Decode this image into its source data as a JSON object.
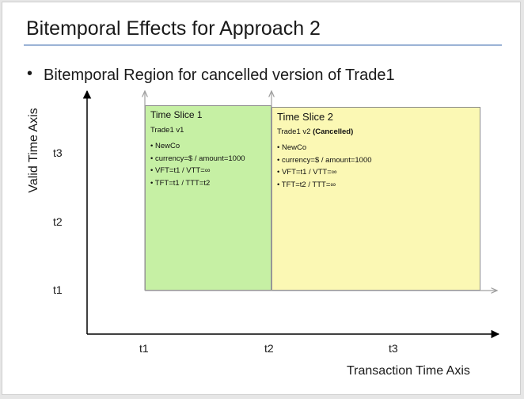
{
  "title": "Bitemporal Effects for Approach 2",
  "bullet": {
    "marker": "•",
    "text": "Bitemporal Region for cancelled version of Trade1"
  },
  "axes": {
    "y_label": "Valid Time Axis",
    "x_label": "Transaction Time Axis",
    "y_ticks": [
      "t3",
      "t2",
      "t1"
    ],
    "x_ticks": [
      "t1",
      "t2",
      "t3"
    ]
  },
  "slices": [
    {
      "title": "Time Slice 1",
      "subtitle": "Trade1 v1",
      "subtitle_suffix": "",
      "items": [
        "• NewCo",
        "• currency=$ / amount=1000",
        "• VFT=t1 / VTT=∞",
        "• TFT=t1 / TTT=t2"
      ],
      "color": "#c6f0a4"
    },
    {
      "title": "Time Slice 2",
      "subtitle": "Trade1 v2 ",
      "subtitle_suffix": "(Cancelled)",
      "items": [
        "• NewCo",
        "• currency=$ / amount=1000",
        "• VFT=t1 / VTT=∞",
        "• TFT=t2 / TTT=∞"
      ],
      "color": "#fbf8b4"
    }
  ],
  "colors": {
    "title_rule": "#9bb3d6",
    "axis": "#000000",
    "guide_arrow": "#a0a0a0"
  }
}
